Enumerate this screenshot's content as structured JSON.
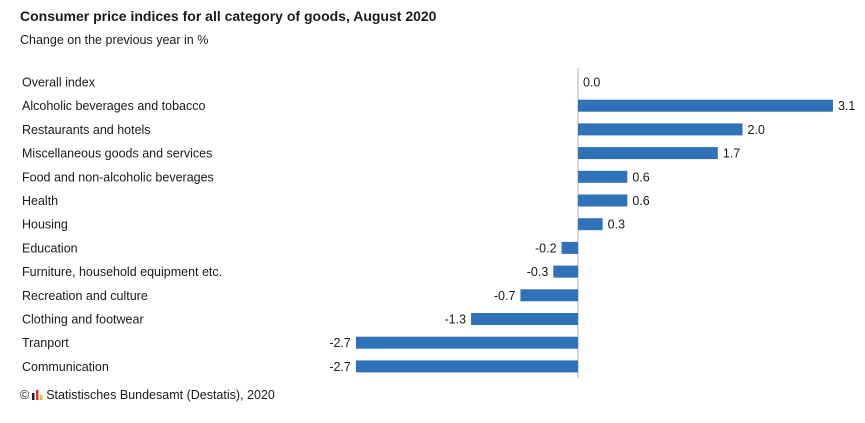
{
  "title": "Consumer price indices for all category of goods, August 2020",
  "subtitle": "Change on the previous year in %",
  "footer": {
    "copyright_symbol": "©",
    "source": "Statistisches Bundesamt (Destatis), 2020"
  },
  "colors": {
    "bar": "#2f72b8",
    "axis": "#b0b0b0",
    "logo_bars": [
      "#222222",
      "#e0302b",
      "#f2b81d"
    ]
  },
  "chart_data": {
    "type": "bar",
    "orientation": "horizontal",
    "categories": [
      "Overall index",
      "Alcoholic beverages and tobacco",
      "Restaurants and hotels",
      "Miscellaneous goods and services",
      "Food and non-alcoholic beverages",
      "Health",
      "Housing",
      "Education",
      "Furniture, household equipment etc.",
      "Recreation and culture",
      "Clothing and footwear",
      "Tranport",
      "Communication"
    ],
    "values": [
      0.0,
      3.1,
      2.0,
      1.7,
      0.6,
      0.6,
      0.3,
      -0.2,
      -0.3,
      -0.7,
      -1.3,
      -2.7,
      -2.7
    ],
    "value_labels": [
      "0.0",
      "3.1",
      "2.0",
      "1.7",
      "0.6",
      "0.6",
      "0.3",
      "-0.2",
      "-0.3",
      "-0.7",
      "-1.3",
      "-2.7",
      "-2.7"
    ],
    "xlim": [
      -2.7,
      3.1
    ],
    "grid": false,
    "legend": "none"
  }
}
